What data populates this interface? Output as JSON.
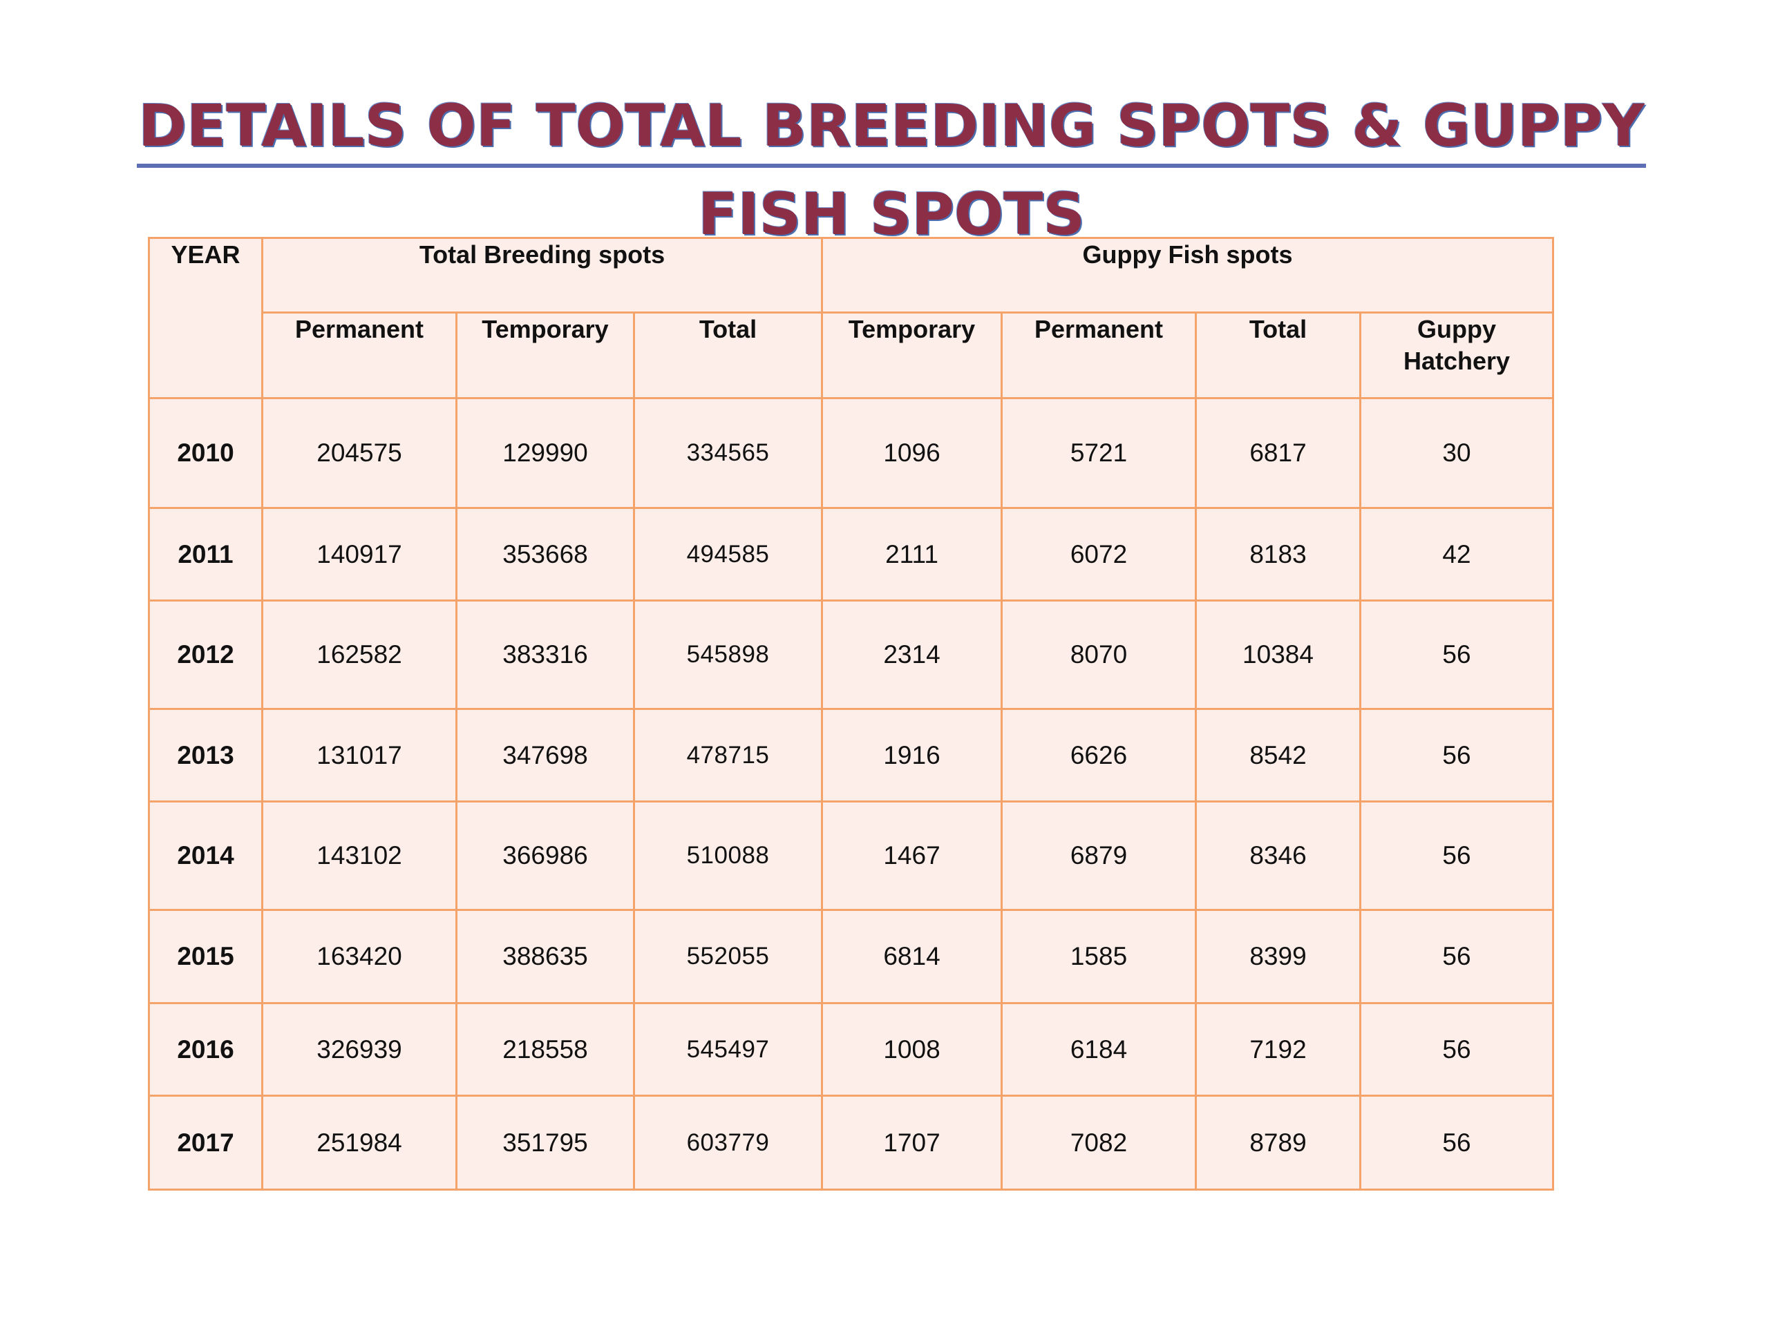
{
  "title": {
    "line1": "DETAILS  OF  TOTAL BREEDING SPOTS & GUPPY",
    "line2": "FISH  SPOTS"
  },
  "table": {
    "header": {
      "year": "YEAR",
      "group_breeding": "Total Breeding spots",
      "group_guppy": "Guppy Fish spots",
      "columns": [
        "Permanent",
        "Temporary",
        "Total",
        "Temporary",
        "Permanent",
        "Total",
        "Guppy Hatchery"
      ]
    },
    "rows": [
      {
        "year": "2010",
        "values": [
          "204575",
          "129990",
          "334565",
          "1096",
          "5721",
          "6817",
          "30"
        ]
      },
      {
        "year": "2011",
        "values": [
          "140917",
          "353668",
          "494585",
          "2111",
          "6072",
          "8183",
          "42"
        ]
      },
      {
        "year": "2012",
        "values": [
          "162582",
          "383316",
          "545898",
          "2314",
          "8070",
          "10384",
          "56"
        ]
      },
      {
        "year": "2013",
        "values": [
          "131017",
          "347698",
          "478715",
          "1916",
          "6626",
          "8542",
          "56"
        ]
      },
      {
        "year": "2014",
        "values": [
          "143102",
          "366986",
          "510088",
          "1467",
          "6879",
          "8346",
          "56"
        ]
      },
      {
        "year": "2015",
        "values": [
          "163420",
          "388635",
          "552055",
          "6814",
          "1585",
          "8399",
          "56"
        ]
      },
      {
        "year": "2016",
        "values": [
          "326939",
          "218558",
          "545497",
          "1008",
          "6184",
          "7192",
          "56"
        ]
      },
      {
        "year": "2017",
        "values": [
          "251984",
          "351795",
          "603779",
          "1707",
          "7082",
          "8789",
          "56"
        ]
      }
    ]
  },
  "colors": {
    "title_text": "#8b2e46",
    "title_underline": "#5c6fb4",
    "cell_background": "#fdeee9",
    "cell_border": "#f4a46a"
  }
}
